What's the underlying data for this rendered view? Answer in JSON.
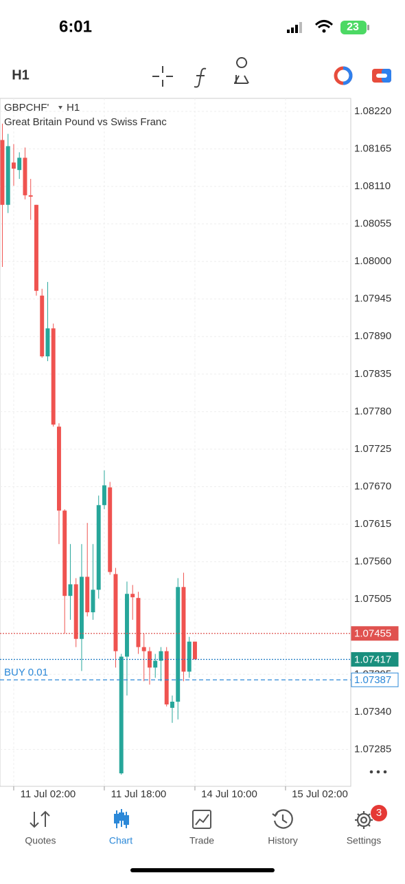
{
  "status_bar": {
    "time": "6:01",
    "battery": "23"
  },
  "toolbar": {
    "timeframe": "H1"
  },
  "chart_data": {
    "type": "candlestick",
    "symbol": "GBPCHF'",
    "timeframe": "H1",
    "subtitle": "Great Britain Pound vs Swiss Franc",
    "up_color": "#26a69a",
    "down_color": "#ef5350",
    "grid": true,
    "candles": [
      {
        "open": 1.08178,
        "high": 1.08202,
        "low": 1.07992,
        "close": 1.08083
      },
      {
        "open": 1.08083,
        "high": 1.08187,
        "low": 1.08071,
        "close": 1.08169
      },
      {
        "open": 1.08145,
        "high": 1.08172,
        "low": 1.08111,
        "close": 1.08136
      },
      {
        "open": 1.08134,
        "high": 1.0816,
        "low": 1.08121,
        "close": 1.08152
      },
      {
        "open": 1.08152,
        "high": 1.08167,
        "low": 1.08091,
        "close": 1.08097
      },
      {
        "open": 1.08097,
        "high": 1.08121,
        "low": 1.08061,
        "close": 1.08095
      },
      {
        "open": 1.08083,
        "high": 1.08083,
        "low": 1.0795,
        "close": 1.07957
      },
      {
        "open": 1.0795,
        "high": 1.0796,
        "low": 1.07859,
        "close": 1.07861
      },
      {
        "open": 1.07861,
        "high": 1.0797,
        "low": 1.07854,
        "close": 1.07902
      },
      {
        "open": 1.07902,
        "high": 1.07909,
        "low": 1.07758,
        "close": 1.07761
      },
      {
        "open": 1.07758,
        "high": 1.07763,
        "low": 1.07586,
        "close": 1.07635
      },
      {
        "open": 1.07635,
        "high": 1.07637,
        "low": 1.07455,
        "close": 1.0751
      },
      {
        "open": 1.0751,
        "high": 1.07586,
        "low": 1.07475,
        "close": 1.07527
      },
      {
        "open": 1.07527,
        "high": 1.07536,
        "low": 1.07435,
        "close": 1.07447
      },
      {
        "open": 1.07447,
        "high": 1.07586,
        "low": 1.074,
        "close": 1.07538
      },
      {
        "open": 1.07538,
        "high": 1.07617,
        "low": 1.0748,
        "close": 1.07486
      },
      {
        "open": 1.07486,
        "high": 1.07586,
        "low": 1.07475,
        "close": 1.07519
      },
      {
        "open": 1.07519,
        "high": 1.07657,
        "low": 1.07506,
        "close": 1.07643
      },
      {
        "open": 1.07643,
        "high": 1.07694,
        "low": 1.07637,
        "close": 1.07672
      },
      {
        "open": 1.07669,
        "high": 1.07677,
        "low": 1.07541,
        "close": 1.07545
      },
      {
        "open": 1.07542,
        "high": 1.07551,
        "low": 1.07405,
        "close": 1.07429
      },
      {
        "open": 1.0725,
        "high": 1.07425,
        "low": 1.07248,
        "close": 1.07421
      },
      {
        "open": 1.07421,
        "high": 1.07531,
        "low": 1.07364,
        "close": 1.07513
      },
      {
        "open": 1.07513,
        "high": 1.07526,
        "low": 1.07475,
        "close": 1.07508
      },
      {
        "open": 1.07507,
        "high": 1.07516,
        "low": 1.07425,
        "close": 1.07435
      },
      {
        "open": 1.07435,
        "high": 1.07455,
        "low": 1.07385,
        "close": 1.07429
      },
      {
        "open": 1.07429,
        "high": 1.07435,
        "low": 1.0738,
        "close": 1.07405
      },
      {
        "open": 1.07405,
        "high": 1.07425,
        "low": 1.0739,
        "close": 1.07415
      },
      {
        "open": 1.07415,
        "high": 1.07435,
        "low": 1.07385,
        "close": 1.07429
      },
      {
        "open": 1.07429,
        "high": 1.07435,
        "low": 1.07348,
        "close": 1.07351
      },
      {
        "open": 1.07346,
        "high": 1.07364,
        "low": 1.07324,
        "close": 1.07355
      },
      {
        "open": 1.07355,
        "high": 1.07536,
        "low": 1.07329,
        "close": 1.07523
      },
      {
        "open": 1.07523,
        "high": 1.07544,
        "low": 1.07385,
        "close": 1.07399
      },
      {
        "open": 1.07399,
        "high": 1.0745,
        "low": 1.0739,
        "close": 1.07443
      },
      {
        "open": 1.07443,
        "high": 1.07443,
        "low": 1.07417,
        "close": 1.07417
      }
    ],
    "ylim": [
      1.07231,
      1.08239
    ],
    "yticks": [
      {
        "value": 1.0822,
        "label": "1.08220"
      },
      1.08165,
      {
        "value": 1.0811,
        "label": "1.08110"
      },
      1.08055,
      {
        "value": 1.08,
        "label": "1.08000"
      },
      1.07945,
      {
        "value": 1.0789,
        "label": "1.07890"
      },
      1.07835,
      {
        "value": 1.0778,
        "label": "1.07780"
      },
      1.07725,
      {
        "value": 1.0767,
        "label": "1.07670"
      },
      1.07615,
      {
        "value": 1.0756,
        "label": "1.07560"
      },
      1.07505,
      1.07395,
      {
        "value": 1.0734,
        "label": "1.07340"
      },
      1.07285
    ],
    "xlim": [
      -0.42,
      61.52
    ],
    "xticks": [
      {
        "value": 2,
        "label": "11 Jul 02:00"
      },
      {
        "value": 18,
        "label": "11 Jul 18:00"
      },
      {
        "value": 34,
        "label": "14 Jul 10:00"
      },
      {
        "value": 50,
        "label": "15 Jul 02:00"
      }
    ],
    "price_lines": [
      {
        "value": 1.07455,
        "color": "#e0524f",
        "style": "filled"
      },
      {
        "value": 1.07417,
        "color": "#1a8f7e",
        "style": "filled",
        "line_color": "#1a78c2"
      },
      {
        "name": "BUY 0.01",
        "value": 1.07387,
        "color": "#2b88d8",
        "style": "outline"
      }
    ]
  },
  "tab_bar": {
    "tabs": [
      {
        "label": "Quotes"
      },
      {
        "label": "Chart"
      },
      {
        "label": "Trade"
      },
      {
        "label": "History"
      },
      {
        "label": "Settings"
      }
    ],
    "active": 1,
    "badge": 3
  }
}
